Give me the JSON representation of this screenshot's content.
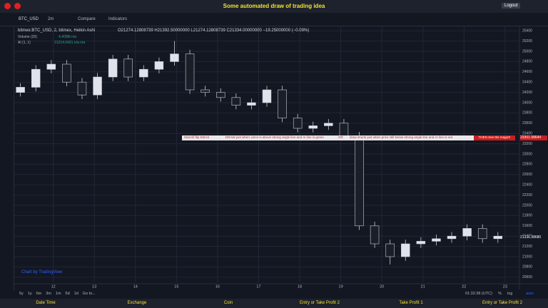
{
  "header": {
    "title": "Some automated draw of trading idea",
    "logout": "Logout"
  },
  "toolbar": {
    "symbol": "BTC_USD",
    "interval": "2m",
    "compare": "Compare",
    "indicators": "Indicators"
  },
  "legend": {
    "main": "bitmex:BTC_USD, 2, bitmex, Heikin Ashi",
    "ohlc": "O21274.12808739  H21392.50000000  L21274.12808739  C21334.00000000  −19.25000000 (−0.09%)",
    "volume": "Volume (20)",
    "volume_value": "4.409M  n/a",
    "ai": "AI (1, 1)",
    "ai_value": "21214.0421  n/a  n/a"
  },
  "banner": [
    "Wait till flip EMAS",
    "DRAW just when:  price is above strong angle line and AI line is green",
    "OR",
    "draw shorts just when price still below strong angle line and AI line is red",
    "THEN See the magic!!"
  ],
  "price_labels": [
    "23301.98644",
    "21336.98680"
  ],
  "watermark": "Chart by TradingView",
  "periods": [
    "5y",
    "1y",
    "6m",
    "3m",
    "1m",
    "5d",
    "1d",
    "Go to..."
  ],
  "bottom_right": [
    "01:32:38 (UTC)",
    "%",
    "log",
    "auto"
  ],
  "footer": [
    "Date Time",
    "Exchange",
    "Coin",
    "Entry or Take Profit 2",
    "Take Profit 1",
    "Entry or Take Profit 2"
  ],
  "chart_data": {
    "type": "candlestick",
    "x": [
      11.2,
      11.575,
      11.95,
      12.325,
      12.7,
      13.075,
      13.45,
      13.825,
      14.2,
      14.575,
      14.95,
      15.325,
      15.7,
      16.075,
      16.45,
      16.825,
      17.2,
      17.575,
      17.95,
      18.325,
      18.7,
      19.075,
      19.45,
      19.825,
      20.2,
      20.575,
      20.95,
      21.325,
      21.7,
      22.075,
      22.45,
      22.825
    ],
    "open": [
      24200,
      24300,
      24650,
      24750,
      24400,
      24150,
      24500,
      24850,
      24500,
      24650,
      24800,
      24950,
      24250,
      24200,
      24100,
      23950,
      24000,
      24250,
      23700,
      23500,
      23550,
      23600,
      23350,
      21600,
      21250,
      21000,
      21250,
      21300,
      21350,
      21400,
      21550,
      21350
    ],
    "high": [
      24380,
      24730,
      24830,
      24830,
      24480,
      24580,
      24930,
      24930,
      24730,
      24880,
      25200,
      25030,
      24330,
      24280,
      24180,
      24080,
      24330,
      24330,
      23780,
      23630,
      23680,
      23680,
      23430,
      21680,
      21330,
      21330,
      21380,
      21430,
      21480,
      21630,
      21630,
      21480
    ],
    "low": [
      24120,
      24220,
      24570,
      24320,
      24070,
      24070,
      24420,
      24420,
      24420,
      24570,
      24720,
      24170,
      24120,
      24020,
      23870,
      23870,
      23920,
      23620,
      23420,
      23420,
      23470,
      23270,
      21520,
      21170,
      20850,
      20920,
      21170,
      21220,
      21270,
      21320,
      21270,
      21270
    ],
    "close": [
      24300,
      24650,
      24750,
      24400,
      24150,
      24500,
      24850,
      24500,
      24650,
      24800,
      24950,
      24250,
      24200,
      24100,
      23950,
      24000,
      24250,
      23700,
      23500,
      23550,
      23600,
      23350,
      21600,
      21250,
      21000,
      21250,
      21300,
      21350,
      21400,
      21550,
      21350,
      21400
    ],
    "up_color": "#e0e3eb",
    "down_color": "#1a1e29",
    "xlim": [
      11.05,
      23.35
    ],
    "xticks": [
      12,
      13,
      14,
      15,
      16,
      17,
      18,
      19,
      20,
      21,
      22,
      23
    ],
    "ylim": [
      20500,
      25500
    ],
    "yticks": [
      20600,
      20800,
      21000,
      21200,
      21400,
      21600,
      21800,
      22000,
      22200,
      22400,
      22600,
      22800,
      23000,
      23200,
      23400,
      23600,
      23800,
      24000,
      24200,
      24400,
      24600,
      24800,
      25000,
      25200,
      25400
    ],
    "grid": true
  }
}
